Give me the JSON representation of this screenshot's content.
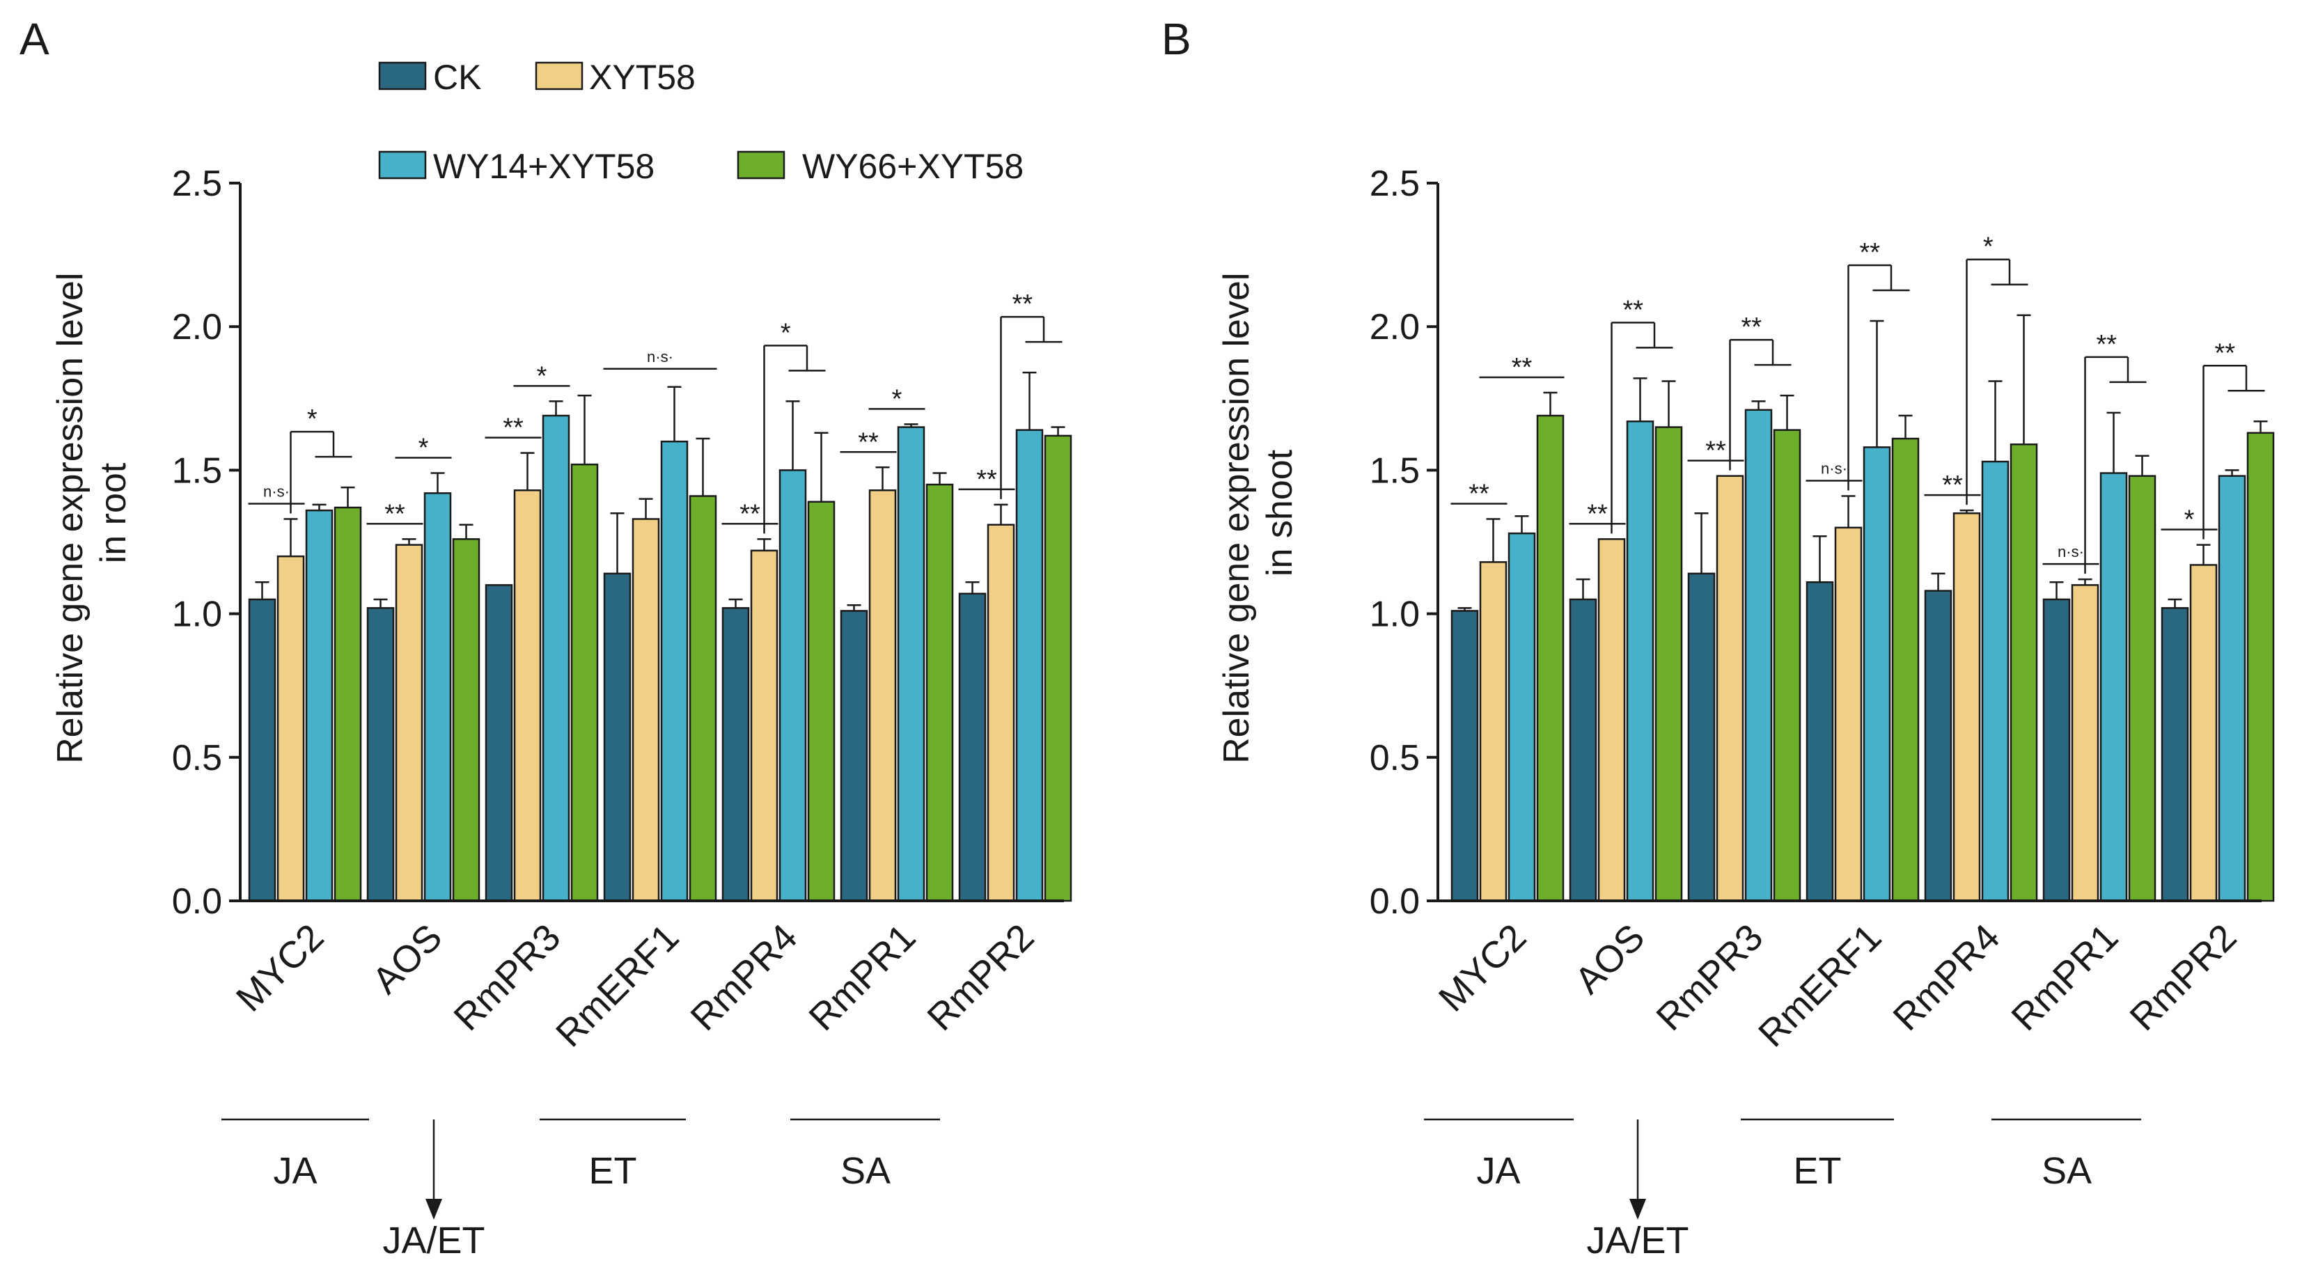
{
  "figure": {
    "legend": [
      {
        "name": "CK",
        "color": "#2a6781"
      },
      {
        "name": "XYT58",
        "color": "#f2cf86"
      },
      {
        "name": "WY14+XYT58",
        "color": "#46b1c8"
      },
      {
        "name": "WY66+XYT58",
        "color": "#6daf2b"
      }
    ],
    "group_labels": {
      "ja": "JA",
      "ja_et": "JA/ET",
      "et": "ET",
      "sa": "SA"
    }
  },
  "chart_data": [
    {
      "panel": "A",
      "type": "bar",
      "title": "",
      "xlabel": "",
      "ylabel": "Relative gene expression level in root",
      "ylabel_lines": [
        "Relative gene expression level",
        "in root"
      ],
      "ylim": [
        0,
        2.5
      ],
      "yticks": [
        "0.0",
        "0.5",
        "1.0",
        "1.5",
        "2.0",
        "2.5"
      ],
      "categories": [
        "MYC2",
        "AOS",
        "RmPR3",
        "RmERF1",
        "RmPR4",
        "RmPR1",
        "RmPR2"
      ],
      "series": [
        {
          "name": "CK",
          "values": [
            1.05,
            1.02,
            1.1,
            1.14,
            1.02,
            1.01,
            1.07
          ],
          "errors": [
            0.06,
            0.03,
            0.0,
            0.21,
            0.03,
            0.02,
            0.04
          ]
        },
        {
          "name": "XYT58",
          "values": [
            1.2,
            1.24,
            1.43,
            1.33,
            1.22,
            1.43,
            1.31
          ],
          "errors": [
            0.13,
            0.02,
            0.13,
            0.07,
            0.04,
            0.08,
            0.07
          ]
        },
        {
          "name": "WY14+XYT58",
          "values": [
            1.36,
            1.42,
            1.69,
            1.6,
            1.5,
            1.65,
            1.64
          ],
          "errors": [
            0.02,
            0.07,
            0.05,
            0.19,
            0.24,
            0.01,
            0.2
          ]
        },
        {
          "name": "WY66+XYT58",
          "values": [
            1.37,
            1.26,
            1.52,
            1.41,
            1.39,
            1.45,
            1.62
          ],
          "errors": [
            0.07,
            0.05,
            0.24,
            0.2,
            0.24,
            0.04,
            0.03
          ]
        }
      ],
      "annotations": [
        {
          "type": "pair",
          "a": 0,
          "b": 1,
          "text": "n·s·"
        },
        {
          "type": "multi",
          "a": 1,
          "b": [
            2,
            3
          ],
          "text": "*"
        },
        {
          "type": "pair",
          "a": 0,
          "b": 1,
          "text": "**"
        },
        {
          "type": "pair",
          "a": 1,
          "b": 2,
          "text": "*"
        },
        {
          "type": "pair",
          "a": 0,
          "b": 1,
          "text": "**"
        },
        {
          "type": "pair",
          "a": 1,
          "b": 2,
          "text": "*"
        },
        {
          "type": "span",
          "a": 0,
          "b": 3,
          "text": "n·s·"
        },
        {
          "type": "pair",
          "a": 0,
          "b": 1,
          "text": "**"
        },
        {
          "type": "multi",
          "a": 1,
          "b": [
            2,
            3
          ],
          "text": "*"
        },
        {
          "type": "pair",
          "a": 0,
          "b": 1,
          "text": "**"
        },
        {
          "type": "pair",
          "a": 1,
          "b": 2,
          "text": "*"
        },
        {
          "type": "pair",
          "a": 0,
          "b": 1,
          "text": "**"
        },
        {
          "type": "multi",
          "a": 1,
          "b": [
            2,
            3
          ],
          "text": "**"
        }
      ]
    },
    {
      "panel": "B",
      "type": "bar",
      "title": "",
      "xlabel": "",
      "ylabel": "Relative gene expression level in shoot",
      "ylabel_lines": [
        "Relative gene expression level",
        "in shoot"
      ],
      "ylim": [
        0,
        2.5
      ],
      "yticks": [
        "0.0",
        "0.5",
        "1.0",
        "1.5",
        "2.0",
        "2.5"
      ],
      "categories": [
        "MYC2",
        "AOS",
        "RmPR3",
        "RmERF1",
        "RmPR4",
        "RmPR1",
        "RmPR2"
      ],
      "series": [
        {
          "name": "CK",
          "values": [
            1.01,
            1.05,
            1.14,
            1.11,
            1.08,
            1.05,
            1.02
          ],
          "errors": [
            0.01,
            0.07,
            0.21,
            0.16,
            0.06,
            0.06,
            0.03
          ]
        },
        {
          "name": "XYT58",
          "values": [
            1.18,
            1.26,
            1.48,
            1.3,
            1.35,
            1.1,
            1.17
          ],
          "errors": [
            0.15,
            0.0,
            0.0,
            0.11,
            0.01,
            0.02,
            0.07
          ]
        },
        {
          "name": "WY14+XYT58",
          "values": [
            1.28,
            1.67,
            1.71,
            1.58,
            1.53,
            1.49,
            1.48
          ],
          "errors": [
            0.06,
            0.15,
            0.03,
            0.44,
            0.28,
            0.21,
            0.02
          ]
        },
        {
          "name": "WY66+XYT58",
          "values": [
            1.69,
            1.65,
            1.64,
            1.61,
            1.59,
            1.48,
            1.63
          ],
          "errors": [
            0.08,
            0.16,
            0.12,
            0.08,
            0.45,
            0.07,
            0.04
          ]
        }
      ],
      "annotations": [
        {
          "type": "pair",
          "a": 0,
          "b": 1,
          "text": "**"
        },
        {
          "type": "pair",
          "a": 1,
          "b": 3,
          "text": "**"
        },
        {
          "type": "pair",
          "a": 0,
          "b": 1,
          "text": "**"
        },
        {
          "type": "multi",
          "a": 1,
          "b": [
            2,
            3
          ],
          "text": "**"
        },
        {
          "type": "pair",
          "a": 0,
          "b": 1,
          "text": "**"
        },
        {
          "type": "multi",
          "a": 1,
          "b": [
            2,
            3
          ],
          "text": "**"
        },
        {
          "type": "pair",
          "a": 0,
          "b": 1,
          "text": "n·s·"
        },
        {
          "type": "multi",
          "a": 1,
          "b": [
            2,
            3
          ],
          "text": "**"
        },
        {
          "type": "pair",
          "a": 0,
          "b": 1,
          "text": "**"
        },
        {
          "type": "multi",
          "a": 1,
          "b": [
            2,
            3
          ],
          "text": "*"
        },
        {
          "type": "pair",
          "a": 0,
          "b": 1,
          "text": "n·s·"
        },
        {
          "type": "multi",
          "a": 1,
          "b": [
            2,
            3
          ],
          "text": "**"
        },
        {
          "type": "pair",
          "a": 0,
          "b": 1,
          "text": "*"
        },
        {
          "type": "multi",
          "a": 1,
          "b": [
            2,
            3
          ],
          "text": "**"
        }
      ]
    }
  ]
}
